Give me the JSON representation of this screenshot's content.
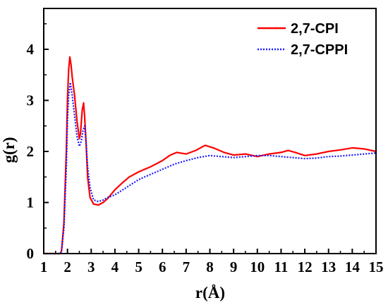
{
  "chart_data": {
    "type": "line",
    "xlabel": "r(Å)",
    "ylabel": "g(r)",
    "xlim": [
      1,
      15
    ],
    "ylim": [
      0,
      4.8
    ],
    "xticks": [
      "1",
      "2",
      "3",
      "4",
      "5",
      "6",
      "7",
      "8",
      "9",
      "10",
      "11",
      "12",
      "13",
      "14",
      "15"
    ],
    "yticks": [
      "0",
      "1",
      "2",
      "3",
      "4"
    ],
    "grid": false,
    "legend_position": "top-right",
    "colors": {
      "series_0": "#ff0000",
      "series_1": "#1a1aff"
    },
    "series": [
      {
        "name": "2,7-CPI",
        "style": "solid",
        "points": [
          [
            1.0,
            0
          ],
          [
            1.7,
            0
          ],
          [
            1.75,
            0.05
          ],
          [
            1.85,
            0.6
          ],
          [
            1.95,
            2.0
          ],
          [
            2.0,
            3.0
          ],
          [
            2.05,
            3.6
          ],
          [
            2.1,
            3.85
          ],
          [
            2.15,
            3.7
          ],
          [
            2.2,
            3.45
          ],
          [
            2.3,
            3.1
          ],
          [
            2.4,
            2.6
          ],
          [
            2.5,
            2.25
          ],
          [
            2.55,
            2.35
          ],
          [
            2.62,
            2.8
          ],
          [
            2.68,
            2.95
          ],
          [
            2.72,
            2.7
          ],
          [
            2.78,
            2.2
          ],
          [
            2.85,
            1.5
          ],
          [
            2.95,
            1.1
          ],
          [
            3.1,
            0.97
          ],
          [
            3.3,
            0.95
          ],
          [
            3.5,
            1.0
          ],
          [
            3.7,
            1.08
          ],
          [
            4.0,
            1.25
          ],
          [
            4.3,
            1.38
          ],
          [
            4.6,
            1.5
          ],
          [
            5.0,
            1.6
          ],
          [
            5.5,
            1.7
          ],
          [
            6.0,
            1.82
          ],
          [
            6.3,
            1.92
          ],
          [
            6.6,
            1.98
          ],
          [
            7.0,
            1.95
          ],
          [
            7.4,
            2.02
          ],
          [
            7.8,
            2.12
          ],
          [
            8.2,
            2.06
          ],
          [
            8.6,
            1.98
          ],
          [
            9.0,
            1.93
          ],
          [
            9.5,
            1.95
          ],
          [
            10.0,
            1.9
          ],
          [
            10.5,
            1.95
          ],
          [
            11.0,
            1.98
          ],
          [
            11.3,
            2.02
          ],
          [
            11.6,
            1.98
          ],
          [
            12.0,
            1.92
          ],
          [
            12.5,
            1.95
          ],
          [
            13.0,
            2.0
          ],
          [
            13.5,
            2.03
          ],
          [
            14.0,
            2.07
          ],
          [
            14.5,
            2.05
          ],
          [
            15.0,
            2.0
          ]
        ]
      },
      {
        "name": "2,7-CPPI",
        "style": "dotted",
        "points": [
          [
            1.0,
            0
          ],
          [
            1.7,
            0
          ],
          [
            1.75,
            0.05
          ],
          [
            1.85,
            0.5
          ],
          [
            1.95,
            1.7
          ],
          [
            2.0,
            2.6
          ],
          [
            2.05,
            3.1
          ],
          [
            2.12,
            3.35
          ],
          [
            2.2,
            3.1
          ],
          [
            2.3,
            2.7
          ],
          [
            2.4,
            2.3
          ],
          [
            2.5,
            2.1
          ],
          [
            2.58,
            2.2
          ],
          [
            2.65,
            2.4
          ],
          [
            2.72,
            2.5
          ],
          [
            2.78,
            2.2
          ],
          [
            2.85,
            1.7
          ],
          [
            2.95,
            1.3
          ],
          [
            3.1,
            1.05
          ],
          [
            3.3,
            1.02
          ],
          [
            3.5,
            1.05
          ],
          [
            3.7,
            1.1
          ],
          [
            4.0,
            1.15
          ],
          [
            4.5,
            1.3
          ],
          [
            5.0,
            1.45
          ],
          [
            5.5,
            1.55
          ],
          [
            6.0,
            1.65
          ],
          [
            6.5,
            1.75
          ],
          [
            7.0,
            1.82
          ],
          [
            7.5,
            1.88
          ],
          [
            8.0,
            1.92
          ],
          [
            8.5,
            1.9
          ],
          [
            9.0,
            1.88
          ],
          [
            9.5,
            1.9
          ],
          [
            10.0,
            1.92
          ],
          [
            10.5,
            1.92
          ],
          [
            11.0,
            1.9
          ],
          [
            11.5,
            1.88
          ],
          [
            12.0,
            1.86
          ],
          [
            12.5,
            1.87
          ],
          [
            13.0,
            1.9
          ],
          [
            13.5,
            1.91
          ],
          [
            14.0,
            1.93
          ],
          [
            14.5,
            1.95
          ],
          [
            15.0,
            1.97
          ]
        ]
      }
    ]
  }
}
